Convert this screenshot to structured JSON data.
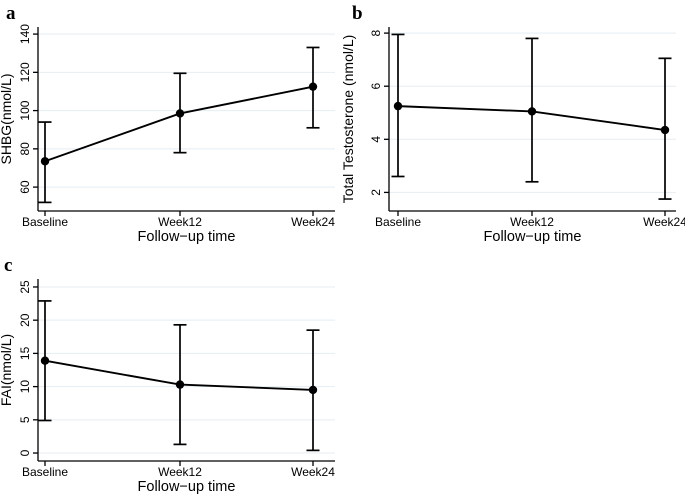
{
  "figure": {
    "background_color": "#ffffff",
    "text_color": "#000000",
    "line_color": "#000000",
    "grid_color": "#e4eef3",
    "panel_letters": [
      "a",
      "b",
      "c"
    ]
  },
  "chart_data": [
    {
      "type": "line",
      "panel_label": "a",
      "ylabel": "SHBG(nmol/L)",
      "xlabel": "Follow−up time",
      "categories": [
        "Baseline",
        "Week12",
        "Week24"
      ],
      "series": [
        {
          "name": "SHBG mean",
          "values": [
            73.5,
            98.5,
            112.5
          ]
        }
      ],
      "error_low": [
        52,
        78,
        91
      ],
      "error_high": [
        94,
        119.5,
        133
      ],
      "yticks": [
        60,
        80,
        100,
        120,
        140
      ],
      "ylim": [
        47.5,
        143.7
      ],
      "grid": true,
      "legend": "none",
      "marker": "filled-circle",
      "line_color": "#000000",
      "grid_color": "#e4eef3"
    },
    {
      "type": "line",
      "panel_label": "b",
      "ylabel": "Total Testosterone (nmol/L)",
      "xlabel": "Follow−up time",
      "categories": [
        "Baseline",
        "Week12",
        "Week24"
      ],
      "series": [
        {
          "name": "Total Testosterone mean",
          "values": [
            5.25,
            5.05,
            4.35
          ]
        }
      ],
      "error_low": [
        2.6,
        2.4,
        1.75
      ],
      "error_high": [
        7.95,
        7.8,
        7.05
      ],
      "yticks": [
        2,
        4,
        6,
        8
      ],
      "ylim": [
        1.3,
        8.23
      ],
      "grid": true,
      "legend": "none",
      "marker": "filled-circle",
      "line_color": "#000000",
      "grid_color": "#e4eef3"
    },
    {
      "type": "line",
      "panel_label": "c",
      "ylabel": "FAI(nmol/L)",
      "xlabel": "Follow−up time",
      "categories": [
        "Baseline",
        "Week12",
        "Week24"
      ],
      "series": [
        {
          "name": "FAI mean",
          "values": [
            13.9,
            10.3,
            9.5
          ]
        }
      ],
      "error_low": [
        4.9,
        1.3,
        0.4
      ],
      "error_high": [
        22.9,
        19.3,
        18.5
      ],
      "yticks": [
        0,
        5,
        10,
        15,
        20,
        25
      ],
      "ylim": [
        -1.2,
        26.2
      ],
      "grid": true,
      "legend": "none",
      "marker": "filled-circle",
      "line_color": "#000000",
      "grid_color": "#e4eef3"
    }
  ]
}
